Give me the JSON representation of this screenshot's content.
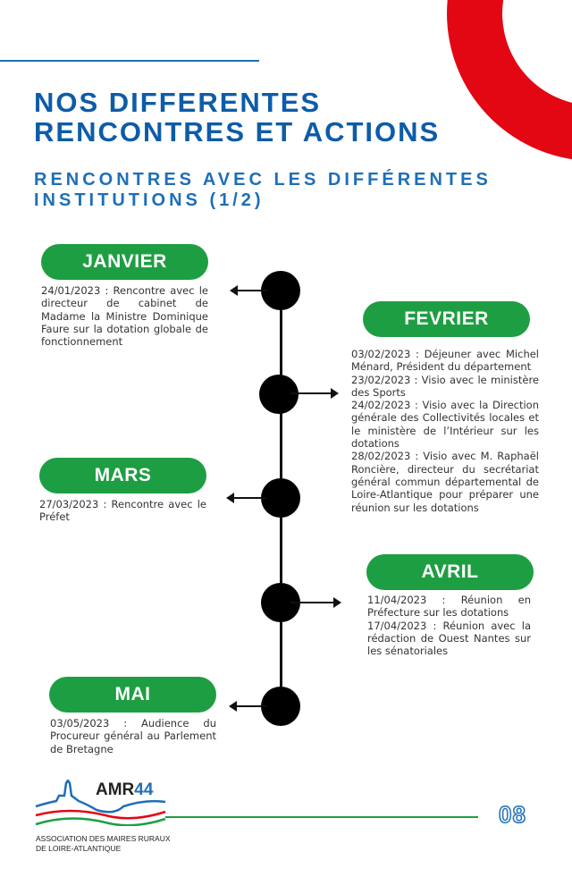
{
  "header": {
    "title_line1": "NOS DIFFERENTES",
    "title_line2": "RENCONTRES ET ACTIONS",
    "subtitle_line1": "RENCONTRES AVEC LES DIFFÉRENTES",
    "subtitle_line2": "INSTITUTIONS (1/2)"
  },
  "months": [
    {
      "label": "JANVIER",
      "entries": [
        "24/01/2023 : Rencontre avec le directeur de cabinet de Madame la Ministre Dominique Faure sur la dotation globale de fonctionnement"
      ]
    },
    {
      "label": "FEVRIER",
      "entries": [
        "03/02/2023 : Déjeuner avec Michel Ménard, Président du département",
        "23/02/2023 : Visio avec le ministère des Sports",
        "24/02/2023 : Visio avec la Direction générale des Collectivités locales et le ministère de l’Intérieur sur les dotations",
        "28/02/2023 : Visio avec M. Raphaël Roncière, directeur du secrétariat général commun départemental de Loire-Atlantique pour préparer une réunion sur les dotations"
      ]
    },
    {
      "label": "MARS",
      "entries": [
        "27/03/2023 : Rencontre avec le Préfet"
      ]
    },
    {
      "label": "AVRIL",
      "entries": [
        "11/04/2023 : Réunion en Préfecture sur les dotations",
        "17/04/2023 : Réunion avec la rédaction de Ouest Nantes sur les sénatoriales"
      ]
    },
    {
      "label": "MAI",
      "entries": [
        "03/05/2023 : Audience du Procureur général au Parlement de Bretagne"
      ]
    }
  ],
  "footer": {
    "logo_name": "AMR",
    "logo_number": "44",
    "logo_sub_line1": "ASSOCIATION DES MAIRES RURAUX",
    "logo_sub_line2": "DE LOIRE-ATLANTIQUE",
    "page_number": "08"
  },
  "colors": {
    "blue": "#0d5ca8",
    "green": "#1e9e42",
    "red": "#e30613"
  }
}
